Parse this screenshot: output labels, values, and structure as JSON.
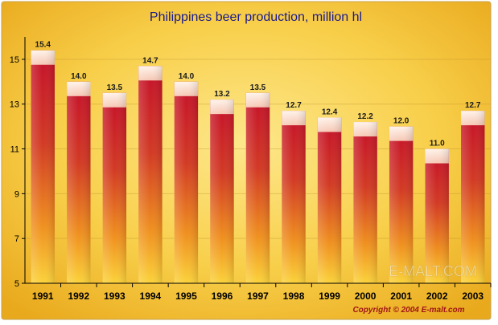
{
  "chart_data": {
    "type": "bar",
    "title": "Philippines beer production, million hl",
    "xlabel": "",
    "ylabel": "",
    "categories": [
      "1991",
      "1992",
      "1993",
      "1994",
      "1995",
      "1996",
      "1997",
      "1998",
      "1999",
      "2000",
      "2001",
      "2002",
      "2003"
    ],
    "values": [
      15.4,
      14.0,
      13.5,
      14.7,
      14.0,
      13.2,
      13.5,
      12.7,
      12.4,
      12.2,
      12.0,
      11.0,
      12.7
    ],
    "value_labels": [
      "15.4",
      "14.0",
      "13.5",
      "14.7",
      "14.0",
      "13.2",
      "13.5",
      "12.7",
      "12.4",
      "12.2",
      "12.0",
      "11.0",
      "12.7"
    ],
    "ylim": [
      5,
      16
    ],
    "yticks": [
      "5",
      "7",
      "9",
      "11",
      "13",
      "15"
    ],
    "grid": true,
    "colors": {
      "bar_top": "#c8102e",
      "bar_bottom": "#f7c21e",
      "bar_foam": "#fbe1cf",
      "background": "#f7cd45",
      "title": "#1a1a8c",
      "copyright": "#a01616"
    }
  },
  "watermark": "E-MALT.COM",
  "copyright": "Copyright © 2004  E-malt.com"
}
